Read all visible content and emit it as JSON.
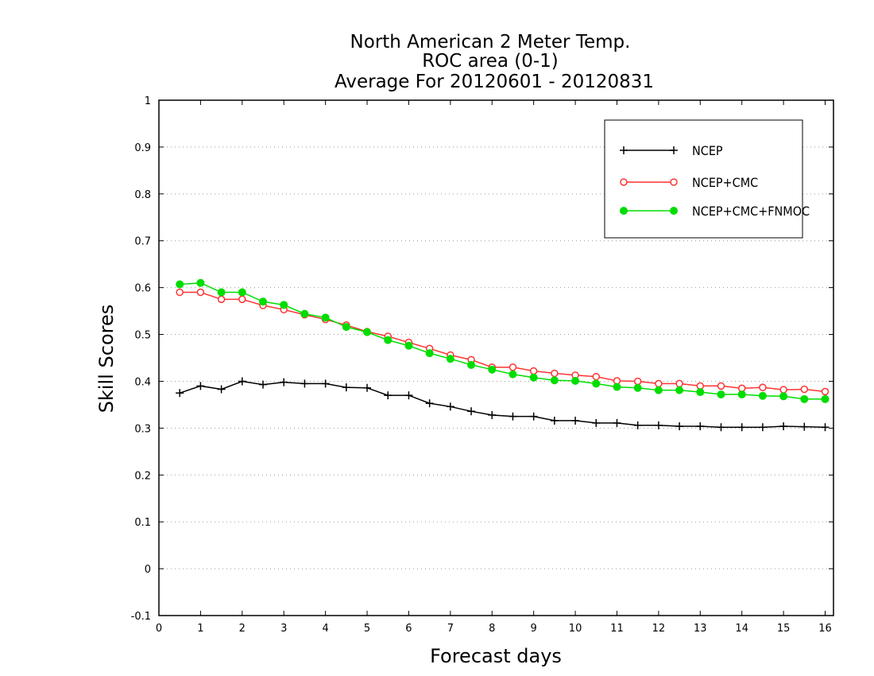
{
  "chart_data": {
    "type": "line",
    "title": "North American 2 Meter Temp.",
    "subtitle": "ROC area (0-1)",
    "subtitle2": "Average For 20120601 - 20120831",
    "xlabel": "Forecast days",
    "ylabel": "Skill Scores",
    "xlim": [
      0,
      16.2
    ],
    "ylim": [
      -0.1,
      1
    ],
    "xticks": [
      0,
      1,
      2,
      3,
      4,
      5,
      6,
      7,
      8,
      9,
      10,
      11,
      12,
      13,
      14,
      15,
      16
    ],
    "yticks": [
      -0.1,
      0,
      0.1,
      0.2,
      0.3,
      0.4,
      0.5,
      0.6,
      0.7,
      0.8,
      0.9,
      1
    ],
    "ytick_labels": [
      "-0.1",
      "0",
      "0.1",
      "0.2",
      "0.3",
      "0.4",
      "0.5",
      "0.6",
      "0.7",
      "0.8",
      "0.9",
      "1"
    ],
    "grid": true,
    "legend_position": "top-right",
    "x": [
      0.5,
      1,
      1.5,
      2,
      2.5,
      3,
      3.5,
      4,
      4.5,
      5,
      5.5,
      6,
      6.5,
      7,
      7.5,
      8,
      8.5,
      9,
      9.5,
      10,
      10.5,
      11,
      11.5,
      12,
      12.5,
      13,
      13.5,
      14,
      14.5,
      15,
      15.5,
      16
    ],
    "series": [
      {
        "name": "NCEP",
        "color": "#000000",
        "marker": "plus",
        "values": [
          0.375,
          0.39,
          0.383,
          0.4,
          0.393,
          0.398,
          0.395,
          0.395,
          0.387,
          0.386,
          0.37,
          0.37,
          0.353,
          0.346,
          0.336,
          0.328,
          0.325,
          0.325,
          0.316,
          0.316,
          0.311,
          0.311,
          0.306,
          0.306,
          0.304,
          0.304,
          0.302,
          0.302,
          0.302,
          0.304,
          0.303,
          0.302
        ]
      },
      {
        "name": "NCEP+CMC",
        "color": "#ff3333",
        "marker": "open-circle",
        "values": [
          0.59,
          0.59,
          0.575,
          0.575,
          0.562,
          0.553,
          0.542,
          0.532,
          0.52,
          0.506,
          0.496,
          0.483,
          0.47,
          0.456,
          0.446,
          0.43,
          0.43,
          0.422,
          0.417,
          0.413,
          0.41,
          0.401,
          0.4,
          0.395,
          0.395,
          0.39,
          0.39,
          0.385,
          0.387,
          0.382,
          0.383,
          0.378
        ]
      },
      {
        "name": "NCEP+CMC+FNMOC",
        "color": "#00dd00",
        "marker": "filled-circle",
        "values": [
          0.607,
          0.61,
          0.59,
          0.59,
          0.57,
          0.563,
          0.544,
          0.536,
          0.516,
          0.505,
          0.488,
          0.476,
          0.46,
          0.448,
          0.435,
          0.425,
          0.415,
          0.408,
          0.402,
          0.401,
          0.395,
          0.388,
          0.386,
          0.381,
          0.381,
          0.377,
          0.372,
          0.372,
          0.369,
          0.368,
          0.362,
          0.362
        ]
      }
    ]
  }
}
